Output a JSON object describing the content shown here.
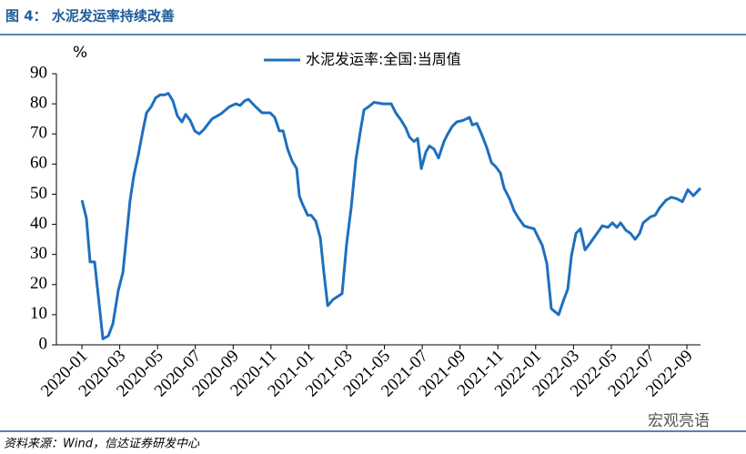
{
  "chart_data": {
    "type": "line",
    "title": "图 4： 水泥发运率持续改善",
    "y_unit": "%",
    "source": "资料来源：Wind，信达证券研发中心",
    "watermark": "宏观亮语",
    "x": [
      0,
      0.24,
      0.43,
      0.67,
      1.11,
      1.4,
      1.64,
      1.92,
      2.17,
      2.31,
      2.55,
      2.74,
      2.98,
      3.22,
      3.42,
      3.66,
      3.9,
      4.14,
      4.38,
      4.57,
      4.81,
      5.05,
      5.29,
      5.49,
      5.73,
      5.97,
      6.21,
      6.45,
      6.88,
      7.36,
      7.8,
      8.13,
      8.37,
      8.61,
      8.81,
      9.19,
      9.53,
      9.77,
      9.96,
      10.2,
      10.44,
      10.64,
      10.88,
      11.12,
      11.36,
      11.5,
      11.65,
      11.94,
      12.13,
      12.37,
      12.61,
      12.8,
      13.0,
      13.28,
      13.76,
      14.0,
      14.24,
      14.49,
      14.73,
      14.92,
      15.16,
      15.45,
      15.93,
      16.36,
      16.6,
      16.89,
      17.13,
      17.32,
      17.56,
      17.76,
      17.95,
      18.19,
      18.38,
      18.62,
      18.86,
      19.15,
      19.35,
      19.59,
      19.83,
      20.16,
      20.5,
      20.65,
      20.89,
      21.13,
      21.41,
      21.66,
      21.9,
      22.14,
      22.33,
      22.62,
      22.86,
      23.1,
      23.39,
      23.63,
      23.92,
      24.11,
      24.35,
      24.59,
      24.83,
      25.22,
      25.46,
      25.7,
      25.89,
      26.13,
      26.37,
      26.61,
      26.85,
      27.19,
      27.53,
      27.82,
      28.06,
      28.3,
      28.49,
      28.78,
      29.02,
      29.26,
      29.5,
      29.69,
      30.08,
      30.32,
      30.56,
      30.89,
      31.18,
      31.47,
      31.76,
      32.05,
      32.34,
      32.72
    ],
    "series": [
      {
        "name": "水泥发运率:全国:当周值",
        "color": "#1f6fbf",
        "values": [
          48,
          42,
          27.5,
          27.5,
          2,
          3,
          7,
          18,
          24,
          33,
          48,
          56,
          63,
          71,
          77,
          79,
          82,
          83,
          83,
          83.5,
          81,
          76,
          74,
          76.5,
          74.5,
          71,
          70,
          71.5,
          75,
          76.7,
          79,
          80,
          79.5,
          81,
          81.5,
          79,
          77,
          77,
          77,
          75.5,
          71,
          71,
          65,
          61,
          58.5,
          49.5,
          47,
          43,
          43,
          41,
          35.5,
          24,
          13,
          15,
          17,
          33.5,
          45.5,
          61.5,
          71,
          78,
          79,
          80.5,
          80,
          80,
          77,
          74.5,
          72,
          69,
          67.5,
          68.5,
          58.5,
          64,
          66,
          65,
          62,
          67.5,
          70,
          72.5,
          74,
          74.5,
          75.5,
          73,
          73.5,
          70,
          65.5,
          60.5,
          59,
          57,
          52,
          48.5,
          44.5,
          42,
          39.5,
          39,
          38.5,
          36,
          33,
          27,
          12,
          10,
          14.5,
          18.5,
          29.5,
          37,
          38.5,
          31.5,
          33.5,
          36.5,
          39.5,
          39,
          40.5,
          39,
          40.5,
          38,
          37,
          35,
          37,
          40.5,
          42.5,
          43,
          45.5,
          48,
          49,
          48.5,
          47.5,
          51.5,
          49.5,
          52
        ]
      }
    ],
    "xlim": [
      -1.35,
      32.72
    ],
    "xticks": [
      {
        "value": 0,
        "label": "2020-01"
      },
      {
        "value": 2,
        "label": "2020-03"
      },
      {
        "value": 4,
        "label": "2020-05"
      },
      {
        "value": 6,
        "label": "2020-07"
      },
      {
        "value": 8,
        "label": "2020-09"
      },
      {
        "value": 10,
        "label": "2020-11"
      },
      {
        "value": 12,
        "label": "2021-01"
      },
      {
        "value": 14,
        "label": "2021-03"
      },
      {
        "value": 16,
        "label": "2021-05"
      },
      {
        "value": 18,
        "label": "2021-07"
      },
      {
        "value": 20,
        "label": "2021-09"
      },
      {
        "value": 22,
        "label": "2021-11"
      },
      {
        "value": 24,
        "label": "2022-01"
      },
      {
        "value": 26,
        "label": "2022-03"
      },
      {
        "value": 28,
        "label": "2022-05"
      },
      {
        "value": 30,
        "label": "2022-07"
      },
      {
        "value": 32,
        "label": "2022-09"
      }
    ],
    "ylim": [
      0,
      90
    ],
    "yticks": [
      0,
      10,
      20,
      30,
      40,
      50,
      60,
      70,
      80,
      90
    ],
    "grid": false,
    "legend": "top"
  }
}
